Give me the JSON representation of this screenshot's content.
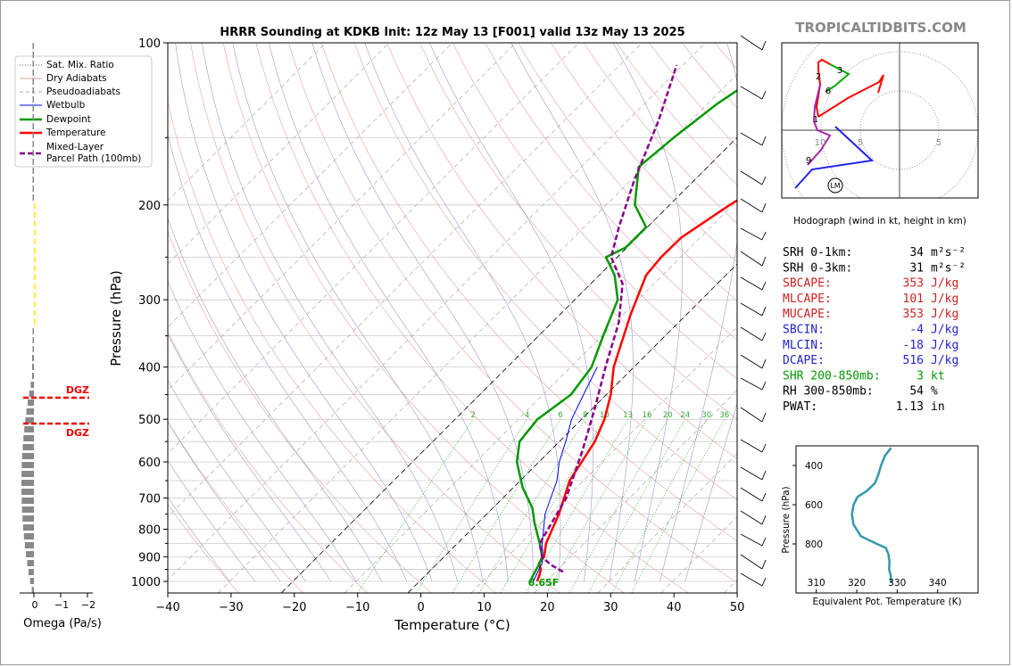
{
  "title": "HRRR Sounding at KDKB Init: 12z May 13 [F001] valid 13z May 13 2025",
  "brand": "TROPICALTIDBITS.COM",
  "skewt": {
    "xlabel": "Temperature (°C)",
    "ylabel": "Pressure (hPa)",
    "xticks": [
      "−40",
      "−30",
      "−20",
      "−10",
      "0",
      "10",
      "20",
      "30",
      "40",
      "50"
    ],
    "pticks": [
      "100",
      "200",
      "300",
      "400",
      "500",
      "600",
      "700",
      "800",
      "900",
      "1000"
    ],
    "surface_label": "6.65F",
    "mixratio_labels": [
      "2",
      "4",
      "6",
      "8",
      "10",
      "13",
      "16",
      "20",
      "24",
      "30",
      "36"
    ],
    "legend": [
      "Sat. Mix. Ratio",
      "Dry Adiabats",
      "Pseudoadiabats",
      "Wetbulb",
      "Dewpoint",
      "Temperature",
      "Mixed-Layer",
      "Parcel Path (100mb)"
    ]
  },
  "chart_data": [
    {
      "type": "line",
      "name": "skew-t",
      "xlim": [
        -40,
        50
      ],
      "ylim": [
        1050,
        100
      ],
      "log_y": true,
      "series": [
        {
          "name": "Temperature",
          "color": "#ff0000",
          "x": [
            18.6,
            18.0,
            17.3,
            16.0,
            15.8,
            14.0,
            11.4,
            7.8,
            5.6,
            3.6,
            0.7,
            -3.2,
            -8.8,
            -12.6,
            -13.1,
            -13.0,
            -10.5,
            -8.0,
            -5.6,
            -3.6,
            -2.5,
            -1.5,
            1.3
          ],
          "p": [
            1000,
            975,
            950,
            925,
            900,
            850,
            750,
            650,
            550,
            500,
            450,
            400,
            320,
            270,
            250,
            230,
            200,
            180,
            160,
            140,
            120,
            110,
            100
          ]
        },
        {
          "name": "Dewpoint",
          "color": "#009900",
          "x": [
            17.5,
            17.0,
            16.6,
            16.1,
            15.5,
            13.0,
            9.0,
            6.2,
            1.5,
            -3.5,
            -6.3,
            -7.0,
            -5.6,
            -6.7,
            -9.8,
            -13.2,
            -17.6,
            -21.8,
            -20.2,
            -20.2,
            -25.5,
            -30.9,
            -30.0,
            -28.5,
            -26.3,
            -24.6
          ],
          "p": [
            1000,
            975,
            950,
            925,
            900,
            850,
            780,
            730,
            670,
            600,
            550,
            500,
            450,
            400,
            350,
            300,
            270,
            250,
            240,
            220,
            200,
            170,
            150,
            130,
            115,
            100
          ]
        },
        {
          "name": "Wetbulb",
          "color": "#0000ee",
          "x": [
            18.0,
            17.5,
            17.0,
            16.5,
            15.6,
            13.4,
            9.2,
            5.8,
            3.2,
            1.0,
            -1.6,
            -3.6,
            -5.8
          ],
          "p": [
            1000,
            975,
            950,
            925,
            900,
            850,
            750,
            650,
            600,
            550,
            500,
            450,
            400
          ]
        },
        {
          "name": "Mixed-Layer Parcel Path (100mb)",
          "color": "#880088",
          "x": [
            21.2,
            18.0,
            15.5,
            13.0,
            10.0,
            5.0,
            0.5,
            -4.5,
            -9.5,
            -15.0,
            -21.0,
            -24.5,
            -29.5,
            -35.0,
            -41.0
          ],
          "p": [
            960,
            930,
            900,
            850,
            700,
            570,
            480,
            400,
            330,
            280,
            250,
            220,
            180,
            140,
            110
          ]
        }
      ]
    },
    {
      "type": "line",
      "name": "hodograph",
      "title": "Hodograph (wind in kt, height in km)",
      "ring_labels": [
        "5",
        "10",
        "5"
      ],
      "height_labels": [
        "1",
        "2",
        "3",
        "6",
        "9",
        "10"
      ],
      "storm_marker": "LM"
    },
    {
      "type": "bar",
      "name": "omega",
      "xlabel": "Omega (Pa/s)",
      "xticks": [
        "0",
        "−1",
        "−2"
      ],
      "dgz_label": "DGZ"
    },
    {
      "type": "line",
      "name": "theta-e",
      "xlabel": "Equivalent Pot. Temperature (K)",
      "ylabel": "Pressure (hPa)",
      "xticks": [
        "310",
        "320",
        "330",
        "340"
      ],
      "yticks": [
        "400",
        "600",
        "800"
      ],
      "xlim": [
        305,
        350
      ],
      "ylim": [
        1050,
        300
      ],
      "x": [
        328.5,
        328.4,
        328.0,
        328.1,
        327.8,
        327.2,
        325.0,
        321.0,
        319.2,
        318.8,
        319.2,
        320.2,
        322.5,
        324.5,
        325.3,
        326.0,
        327.0,
        328.5
      ],
      "p": [
        1000,
        960,
        930,
        890,
        850,
        820,
        800,
        760,
        700,
        650,
        600,
        560,
        530,
        490,
        450,
        400,
        350,
        310
      ],
      "color": "#3399aa"
    }
  ],
  "indices": [
    {
      "label": "SRH 0-1km:",
      "value": "34",
      "unit": "m²s⁻²",
      "color": "#000000"
    },
    {
      "label": "SRH 0-3km:",
      "value": "31",
      "unit": "m²s⁻²",
      "color": "#000000"
    },
    {
      "label": "SBCAPE:",
      "value": "353",
      "unit": "J/kg",
      "color": "#cc2222"
    },
    {
      "label": "MLCAPE:",
      "value": "101",
      "unit": "J/kg",
      "color": "#cc2222"
    },
    {
      "label": "MUCAPE:",
      "value": "353",
      "unit": "J/kg",
      "color": "#cc2222"
    },
    {
      "label": "SBCIN:",
      "value": "-4",
      "unit": "J/kg",
      "color": "#2222cc"
    },
    {
      "label": "MLCIN:",
      "value": "-18",
      "unit": "J/kg",
      "color": "#2222cc"
    },
    {
      "label": "DCAPE:",
      "value": "516",
      "unit": "J/kg",
      "color": "#2222cc"
    },
    {
      "label": "SHR 200-850mb:",
      "value": "3",
      "unit": "kt",
      "color": "#009900"
    },
    {
      "label": "RH 300-850mb:",
      "value": "54",
      "unit": "%",
      "color": "#000000"
    },
    {
      "label": "PWAT:",
      "value": "1.13",
      "unit": "in",
      "color": "#000000"
    }
  ]
}
